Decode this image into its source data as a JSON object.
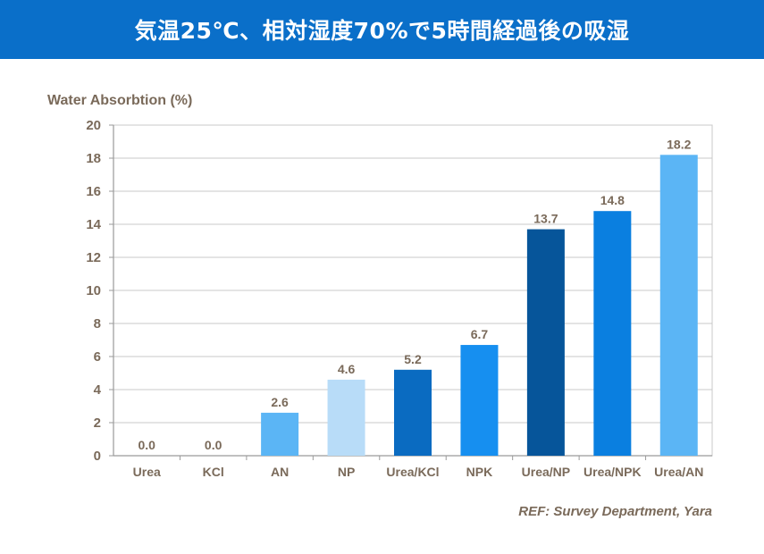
{
  "header": {
    "title": "気温25℃、相対湿度70%で5時間経過後の吸湿"
  },
  "reference": "REF: Survey Department, Yara",
  "colors": {
    "header_bg": "#0a6fc9",
    "grid": "#c8c8c8",
    "axis_text": "#7a6a5a"
  },
  "chart_data": {
    "type": "bar",
    "title": "気温25℃、相対湿度70%で5時間経過後の吸湿",
    "ylabel": "Water Absorbtion (%)",
    "xlabel": "",
    "ylim": [
      0,
      20
    ],
    "yticks": [
      0,
      2,
      4,
      6,
      8,
      10,
      12,
      14,
      16,
      18,
      20
    ],
    "grid": true,
    "categories": [
      "Urea",
      "KCl",
      "AN",
      "NP",
      "Urea/KCl",
      "NPK",
      "Urea/NP",
      "Urea/NPK",
      "Urea/AN"
    ],
    "values": [
      0.0,
      0.0,
      2.6,
      4.6,
      5.2,
      6.7,
      13.7,
      14.8,
      18.2
    ],
    "value_labels": [
      "0.0",
      "0.0",
      "2.6",
      "4.6",
      "5.2",
      "6.7",
      "13.7",
      "14.8",
      "18.2"
    ],
    "bar_colors": [
      "#5bb5f5",
      "#5bb5f5",
      "#5bb5f5",
      "#b8dcf8",
      "#0a6bc1",
      "#168ff0",
      "#06559a",
      "#0a7fe0",
      "#5bb5f5"
    ]
  }
}
